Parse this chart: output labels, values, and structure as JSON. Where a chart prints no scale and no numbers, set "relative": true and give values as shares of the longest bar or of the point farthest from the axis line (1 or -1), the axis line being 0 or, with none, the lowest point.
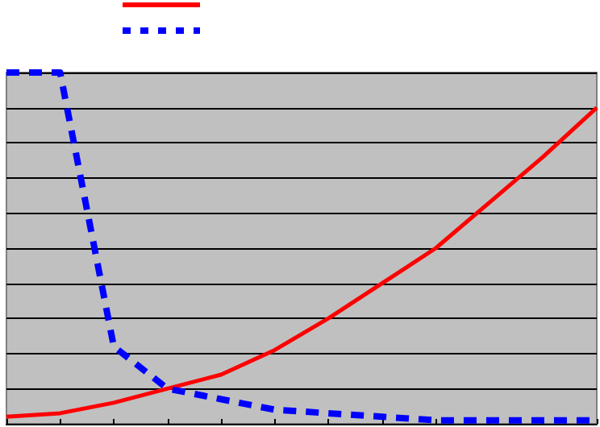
{
  "chart_data": {
    "type": "line",
    "relative": true,
    "categories": [
      null,
      null,
      null,
      null,
      null,
      null,
      null,
      null,
      null,
      null,
      null,
      null
    ],
    "series": [
      {
        "color": "#ff0000",
        "line_style": "solid",
        "values": [
          0.02,
          0.03,
          0.06,
          0.1,
          0.14,
          0.21,
          0.3,
          0.4,
          0.5,
          0.63,
          0.76,
          0.9
        ]
      },
      {
        "color": "#0000ff",
        "line_style": "dashed",
        "values": [
          1,
          1,
          0.22,
          0.1,
          0.07,
          0.04,
          0.03,
          0.02,
          0.01,
          0.01,
          0.01,
          0.01
        ]
      }
    ],
    "grid": "y",
    "marker": "none"
  }
}
